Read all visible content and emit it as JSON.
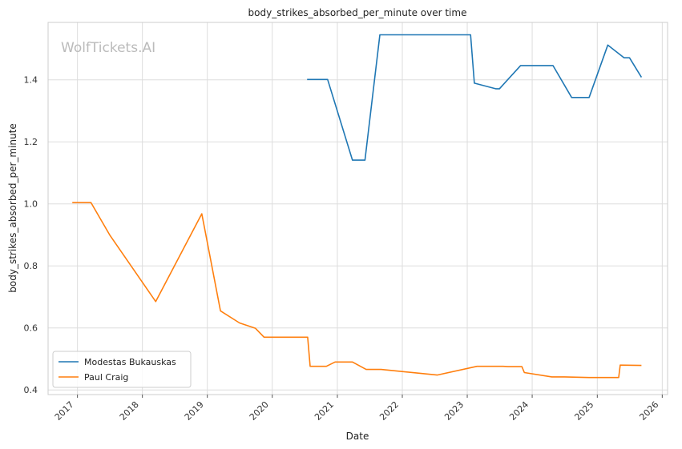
{
  "watermark": "WolfTickets.AI",
  "chart_data": {
    "type": "line",
    "title": "body_strikes_absorbed_per_minute over time",
    "xlabel": "Date",
    "ylabel": "body_strikes_absorbed_per_minute",
    "xlim": [
      "2016-07-20",
      "2026-01-31"
    ],
    "ylim": [
      0.385,
      1.585
    ],
    "x_ticks": [
      "2017",
      "2018",
      "2019",
      "2020",
      "2021",
      "2022",
      "2023",
      "2024",
      "2025",
      "2026"
    ],
    "y_ticks": [
      "0.4",
      "0.6",
      "0.8",
      "1.0",
      "1.2",
      "1.4"
    ],
    "grid": true,
    "legend_position": "lower-left",
    "series": [
      {
        "name": "Modestas Bukauskas",
        "color": "#1f77b4",
        "points": [
          [
            "2020-07-15",
            1.401
          ],
          [
            "2020-11-07",
            1.401
          ],
          [
            "2021-03-27",
            1.141
          ],
          [
            "2021-06-05",
            1.141
          ],
          [
            "2021-08-28",
            1.545
          ],
          [
            "2023-01-20",
            1.545
          ],
          [
            "2023-02-10",
            1.389
          ],
          [
            "2023-06-10",
            1.371
          ],
          [
            "2023-07-01",
            1.371
          ],
          [
            "2023-10-28",
            1.446
          ],
          [
            "2024-04-27",
            1.446
          ],
          [
            "2024-08-10",
            1.343
          ],
          [
            "2024-11-16",
            1.343
          ],
          [
            "2025-03-01",
            1.512
          ],
          [
            "2025-06-01",
            1.471
          ],
          [
            "2025-07-01",
            1.471
          ],
          [
            "2025-09-06",
            1.408
          ]
        ]
      },
      {
        "name": "Paul Craig",
        "color": "#ff7f0e",
        "points": [
          [
            "2016-12-03",
            1.004
          ],
          [
            "2017-03-18",
            1.004
          ],
          [
            "2017-07-01",
            0.9
          ],
          [
            "2018-03-17",
            0.685
          ],
          [
            "2018-12-01",
            0.968
          ],
          [
            "2019-03-16",
            0.655
          ],
          [
            "2019-07-01",
            0.616
          ],
          [
            "2019-09-28",
            0.599
          ],
          [
            "2019-11-16",
            0.57
          ],
          [
            "2020-06-20",
            0.57
          ],
          [
            "2020-07-18",
            0.57
          ],
          [
            "2020-08-01",
            0.476
          ],
          [
            "2020-10-31",
            0.476
          ],
          [
            "2020-12-19",
            0.49
          ],
          [
            "2021-03-27",
            0.49
          ],
          [
            "2021-06-12",
            0.466
          ],
          [
            "2021-09-04",
            0.466
          ],
          [
            "2022-07-16",
            0.448
          ],
          [
            "2023-02-25",
            0.476
          ],
          [
            "2023-07-22",
            0.476
          ],
          [
            "2023-08-19",
            0.475
          ],
          [
            "2023-11-04",
            0.475
          ],
          [
            "2023-11-18",
            0.456
          ],
          [
            "2024-04-20",
            0.442
          ],
          [
            "2024-07-01",
            0.442
          ],
          [
            "2024-11-16",
            0.44
          ],
          [
            "2025-05-01",
            0.44
          ],
          [
            "2025-05-10",
            0.48
          ],
          [
            "2025-09-06",
            0.479
          ]
        ]
      }
    ]
  }
}
